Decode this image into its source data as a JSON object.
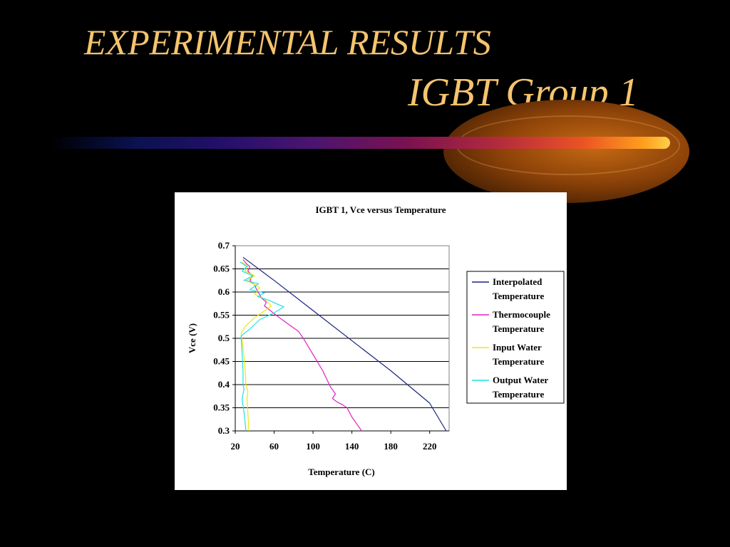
{
  "slide": {
    "title_line1": "EXPERIMENTAL RESULTS",
    "title_line2": "IGBT Group 1",
    "colors": {
      "background": "#000000",
      "title": "#f5c46e"
    }
  },
  "chart_data": {
    "type": "line",
    "title": "IGBT 1, Vce versus Temperature",
    "xlabel": "Temperature (C)",
    "ylabel": "Vce (V)",
    "xlim": [
      20,
      240
    ],
    "ylim": [
      0.3,
      0.7
    ],
    "x_ticks": [
      "20",
      "60",
      "100",
      "140",
      "180",
      "220"
    ],
    "y_ticks": [
      "0.3",
      "0.35",
      "0.4",
      "0.45",
      "0.5",
      "0.55",
      "0.6",
      "0.65",
      "0.7"
    ],
    "grid": "horizontal",
    "legend_position": "right",
    "series": [
      {
        "name": "Interpolated Temperature",
        "color": "#1a237e",
        "points": [
          [
            28,
            0.675
          ],
          [
            60,
            0.625
          ],
          [
            100,
            0.56
          ],
          [
            140,
            0.495
          ],
          [
            180,
            0.43
          ],
          [
            220,
            0.36
          ],
          [
            237,
            0.3
          ]
        ]
      },
      {
        "name": "Thermocouple Temperature",
        "color": "#e020c0",
        "points": [
          [
            28,
            0.67
          ],
          [
            32,
            0.66
          ],
          [
            35,
            0.655
          ],
          [
            33,
            0.645
          ],
          [
            38,
            0.635
          ],
          [
            35,
            0.625
          ],
          [
            40,
            0.615
          ],
          [
            42,
            0.605
          ],
          [
            45,
            0.595
          ],
          [
            47,
            0.587
          ],
          [
            52,
            0.578
          ],
          [
            50,
            0.57
          ],
          [
            56,
            0.56
          ],
          [
            65,
            0.545
          ],
          [
            75,
            0.53
          ],
          [
            85,
            0.515
          ],
          [
            90,
            0.5
          ],
          [
            100,
            0.465
          ],
          [
            110,
            0.43
          ],
          [
            118,
            0.395
          ],
          [
            123,
            0.38
          ],
          [
            120,
            0.37
          ],
          [
            125,
            0.362
          ],
          [
            130,
            0.357
          ],
          [
            135,
            0.35
          ],
          [
            140,
            0.33
          ],
          [
            145,
            0.315
          ],
          [
            150,
            0.3
          ]
        ]
      },
      {
        "name": "Input Water Temperature",
        "color": "#f0e800",
        "points": [
          [
            27,
            0.665
          ],
          [
            33,
            0.655
          ],
          [
            30,
            0.645
          ],
          [
            40,
            0.635
          ],
          [
            32,
            0.625
          ],
          [
            45,
            0.61
          ],
          [
            40,
            0.595
          ],
          [
            50,
            0.585
          ],
          [
            57,
            0.57
          ],
          [
            52,
            0.562
          ],
          [
            40,
            0.545
          ],
          [
            30,
            0.525
          ],
          [
            26,
            0.51
          ],
          [
            28,
            0.48
          ],
          [
            30,
            0.44
          ],
          [
            31,
            0.4
          ],
          [
            33,
            0.385
          ],
          [
            32,
            0.37
          ],
          [
            33,
            0.34
          ],
          [
            34,
            0.3
          ]
        ]
      },
      {
        "name": "Output Water Temperature",
        "color": "#20e0e8",
        "points": [
          [
            25,
            0.665
          ],
          [
            32,
            0.655
          ],
          [
            27,
            0.645
          ],
          [
            38,
            0.635
          ],
          [
            29,
            0.625
          ],
          [
            44,
            0.618
          ],
          [
            35,
            0.605
          ],
          [
            50,
            0.598
          ],
          [
            43,
            0.59
          ],
          [
            55,
            0.582
          ],
          [
            62,
            0.575
          ],
          [
            70,
            0.568
          ],
          [
            60,
            0.555
          ],
          [
            45,
            0.54
          ],
          [
            35,
            0.52
          ],
          [
            26,
            0.505
          ],
          [
            27,
            0.47
          ],
          [
            28,
            0.43
          ],
          [
            28,
            0.4
          ],
          [
            29,
            0.39
          ],
          [
            27,
            0.37
          ],
          [
            29,
            0.34
          ],
          [
            31,
            0.3
          ]
        ]
      }
    ]
  }
}
